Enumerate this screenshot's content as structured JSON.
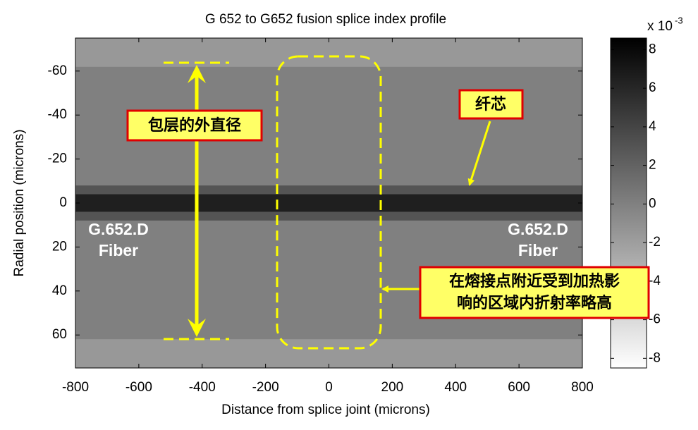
{
  "chart_data": {
    "type": "heatmap",
    "title": "G 652 to G652 fusion splice index profile",
    "x_label": "Distance from splice joint (microns)",
    "y_label": "Radial position (microns)",
    "xlim": [
      -800,
      800
    ],
    "xticks": [
      -800,
      -600,
      -400,
      -200,
      0,
      200,
      400,
      600,
      800
    ],
    "ylim": [
      -75,
      75
    ],
    "y_reversed": true,
    "yticks": [
      -60,
      -40,
      -20,
      0,
      20,
      40,
      60
    ],
    "y_bins": [
      -75,
      -62,
      -8,
      -4,
      4,
      8,
      62,
      75
    ],
    "values": [
      -1.6,
      0,
      3,
      6.5,
      3,
      0,
      -1.6
    ],
    "clim": [
      -8.5,
      8.6
    ],
    "cticks": [
      8,
      6,
      4,
      2,
      0,
      -2,
      -4,
      -6,
      -8
    ],
    "colorbar_multiplier": "x 10",
    "colorbar_exponent": "-3",
    "annotations": {
      "cladding": "包层的外直径",
      "core": "纤芯",
      "heated_zone": [
        "在熔接点附近受到加热影",
        "响的区域内折射率略高"
      ],
      "fiber_left": [
        "G.652.D",
        "Fiber"
      ],
      "fiber_right": [
        "G.652.D",
        "Fiber"
      ]
    }
  }
}
